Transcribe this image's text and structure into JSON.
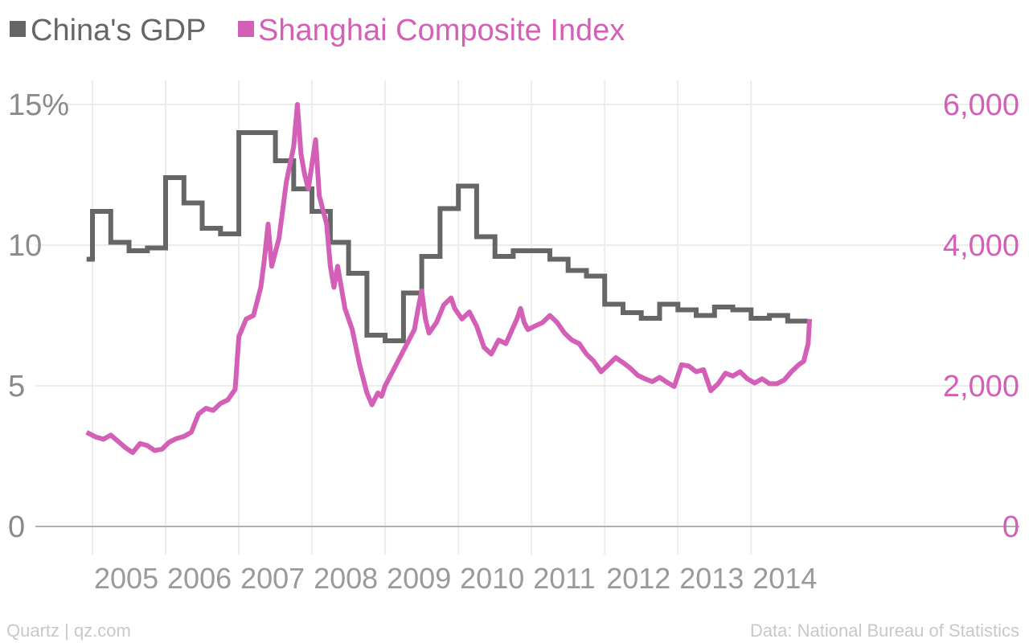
{
  "colors": {
    "gdp": "#666666",
    "index": "#d35fb7",
    "grid": "#ececec",
    "axis": "#b0b0b0",
    "footer": "#c8c8c8"
  },
  "legend": [
    {
      "label": "China's GDP",
      "color": "#666666"
    },
    {
      "label": "Shanghai Composite Index",
      "color": "#d35fb7"
    }
  ],
  "footer": {
    "source_left": "Quartz | qz.com",
    "source_right": "Data: National Bureau of Statistics"
  },
  "chart_data": {
    "type": "line",
    "legend_position": "top-left",
    "grid": true,
    "x_ticks": [
      "2005",
      "2006",
      "2007",
      "2008",
      "2009",
      "2010",
      "2011",
      "2012",
      "2013",
      "2014"
    ],
    "x_range": [
      2004.0,
      2015.04
    ],
    "y_left": {
      "ticks": [
        0,
        5,
        10,
        15
      ],
      "tick_labels": [
        "0",
        "5",
        "10",
        "15%"
      ],
      "range": [
        0,
        15
      ]
    },
    "y_right": {
      "ticks": [
        0,
        2000,
        4000,
        6000
      ],
      "tick_labels": [
        "0",
        "2,000",
        "4,000",
        "6,000"
      ],
      "range": [
        0,
        6000
      ]
    },
    "series": [
      {
        "name": "China's GDP",
        "axis": "left",
        "shape": "step",
        "points": [
          [
            2003.92,
            9.5
          ],
          [
            2004.0,
            9.5
          ],
          [
            2004.0,
            11.2
          ],
          [
            2004.25,
            11.2
          ],
          [
            2004.25,
            10.1
          ],
          [
            2004.5,
            10.1
          ],
          [
            2004.5,
            9.8
          ],
          [
            2004.75,
            9.8
          ],
          [
            2004.75,
            9.9
          ],
          [
            2005.0,
            9.9
          ],
          [
            2005.0,
            12.4
          ],
          [
            2005.25,
            12.4
          ],
          [
            2005.25,
            11.5
          ],
          [
            2005.5,
            11.5
          ],
          [
            2005.5,
            10.6
          ],
          [
            2005.75,
            10.6
          ],
          [
            2005.75,
            10.4
          ],
          [
            2006.0,
            10.4
          ],
          [
            2006.0,
            14.0
          ],
          [
            2006.5,
            14.0
          ],
          [
            2006.5,
            13.0
          ],
          [
            2006.75,
            13.0
          ],
          [
            2006.75,
            12.0
          ],
          [
            2007.0,
            12.0
          ],
          [
            2007.0,
            11.2
          ],
          [
            2007.25,
            11.2
          ],
          [
            2007.25,
            10.1
          ],
          [
            2007.5,
            10.1
          ],
          [
            2007.5,
            9.0
          ],
          [
            2007.75,
            9.0
          ],
          [
            2007.75,
            6.8
          ],
          [
            2008.0,
            6.8
          ],
          [
            2008.0,
            6.6
          ],
          [
            2008.25,
            6.6
          ],
          [
            2008.25,
            8.3
          ],
          [
            2008.5,
            8.3
          ],
          [
            2008.5,
            9.6
          ],
          [
            2008.75,
            9.6
          ],
          [
            2008.75,
            11.3
          ],
          [
            2009.0,
            11.3
          ],
          [
            2009.0,
            12.1
          ],
          [
            2009.25,
            12.1
          ],
          [
            2009.25,
            10.3
          ],
          [
            2009.5,
            10.3
          ],
          [
            2009.5,
            9.6
          ],
          [
            2009.75,
            9.6
          ],
          [
            2009.75,
            9.8
          ],
          [
            2010.25,
            9.8
          ],
          [
            2010.25,
            9.5
          ],
          [
            2010.5,
            9.5
          ],
          [
            2010.5,
            9.1
          ],
          [
            2010.75,
            9.1
          ],
          [
            2010.75,
            8.9
          ],
          [
            2011.0,
            8.9
          ],
          [
            2011.0,
            7.9
          ],
          [
            2011.25,
            7.9
          ],
          [
            2011.25,
            7.6
          ],
          [
            2011.5,
            7.6
          ],
          [
            2011.5,
            7.4
          ],
          [
            2011.75,
            7.4
          ],
          [
            2011.75,
            7.9
          ],
          [
            2012.0,
            7.9
          ],
          [
            2012.0,
            7.7
          ],
          [
            2012.25,
            7.7
          ],
          [
            2012.25,
            7.5
          ],
          [
            2012.5,
            7.5
          ],
          [
            2012.5,
            7.8
          ],
          [
            2012.75,
            7.8
          ],
          [
            2012.75,
            7.7
          ],
          [
            2013.0,
            7.7
          ],
          [
            2013.0,
            7.4
          ],
          [
            2013.25,
            7.4
          ],
          [
            2013.25,
            7.5
          ],
          [
            2013.5,
            7.5
          ],
          [
            2013.5,
            7.3
          ],
          [
            2013.77,
            7.3
          ]
        ]
      },
      {
        "name": "Shanghai Composite Index",
        "axis": "right",
        "shape": "line",
        "points": [
          [
            2003.92,
            1340
          ],
          [
            2004.05,
            1270
          ],
          [
            2004.15,
            1240
          ],
          [
            2004.25,
            1300
          ],
          [
            2004.35,
            1210
          ],
          [
            2004.45,
            1120
          ],
          [
            2004.55,
            1050
          ],
          [
            2004.65,
            1180
          ],
          [
            2004.75,
            1150
          ],
          [
            2004.85,
            1080
          ],
          [
            2004.95,
            1100
          ],
          [
            2005.05,
            1200
          ],
          [
            2005.15,
            1250
          ],
          [
            2005.25,
            1280
          ],
          [
            2005.35,
            1340
          ],
          [
            2005.45,
            1600
          ],
          [
            2005.55,
            1680
          ],
          [
            2005.65,
            1650
          ],
          [
            2005.75,
            1750
          ],
          [
            2005.85,
            1800
          ],
          [
            2005.95,
            1950
          ],
          [
            2006.0,
            2700
          ],
          [
            2006.1,
            2950
          ],
          [
            2006.2,
            3000
          ],
          [
            2006.3,
            3400
          ],
          [
            2006.35,
            3800
          ],
          [
            2006.4,
            4300
          ],
          [
            2006.45,
            3700
          ],
          [
            2006.55,
            4100
          ],
          [
            2006.65,
            4900
          ],
          [
            2006.75,
            5400
          ],
          [
            2006.8,
            6000
          ],
          [
            2006.85,
            5300
          ],
          [
            2006.9,
            5000
          ],
          [
            2006.95,
            4800
          ],
          [
            2007.05,
            5500
          ],
          [
            2007.1,
            4700
          ],
          [
            2007.15,
            4500
          ],
          [
            2007.2,
            4300
          ],
          [
            2007.25,
            3700
          ],
          [
            2007.3,
            3400
          ],
          [
            2007.35,
            3700
          ],
          [
            2007.45,
            3100
          ],
          [
            2007.55,
            2800
          ],
          [
            2007.65,
            2300
          ],
          [
            2007.75,
            1900
          ],
          [
            2007.82,
            1730
          ],
          [
            2007.9,
            1900
          ],
          [
            2007.95,
            1850
          ],
          [
            2008.0,
            2000
          ],
          [
            2008.1,
            2200
          ],
          [
            2008.2,
            2400
          ],
          [
            2008.3,
            2600
          ],
          [
            2008.4,
            2800
          ],
          [
            2008.45,
            3100
          ],
          [
            2008.5,
            3350
          ],
          [
            2008.55,
            2950
          ],
          [
            2008.6,
            2750
          ],
          [
            2008.7,
            2900
          ],
          [
            2008.8,
            3150
          ],
          [
            2008.9,
            3250
          ],
          [
            2008.95,
            3100
          ],
          [
            2009.05,
            2950
          ],
          [
            2009.15,
            3050
          ],
          [
            2009.25,
            2850
          ],
          [
            2009.35,
            2550
          ],
          [
            2009.45,
            2450
          ],
          [
            2009.55,
            2650
          ],
          [
            2009.65,
            2600
          ],
          [
            2009.8,
            2950
          ],
          [
            2009.85,
            3100
          ],
          [
            2009.9,
            2900
          ],
          [
            2009.95,
            2800
          ],
          [
            2010.05,
            2850
          ],
          [
            2010.15,
            2900
          ],
          [
            2010.25,
            3000
          ],
          [
            2010.35,
            2900
          ],
          [
            2010.45,
            2750
          ],
          [
            2010.55,
            2650
          ],
          [
            2010.65,
            2600
          ],
          [
            2010.75,
            2450
          ],
          [
            2010.85,
            2350
          ],
          [
            2010.95,
            2200
          ],
          [
            2011.05,
            2300
          ],
          [
            2011.15,
            2400
          ],
          [
            2011.25,
            2330
          ],
          [
            2011.35,
            2250
          ],
          [
            2011.45,
            2150
          ],
          [
            2011.55,
            2100
          ],
          [
            2011.65,
            2060
          ],
          [
            2011.75,
            2120
          ],
          [
            2011.85,
            2050
          ],
          [
            2011.95,
            1990
          ],
          [
            2012.05,
            2300
          ],
          [
            2012.15,
            2280
          ],
          [
            2012.25,
            2200
          ],
          [
            2012.35,
            2230
          ],
          [
            2012.45,
            1930
          ],
          [
            2012.55,
            2030
          ],
          [
            2012.65,
            2180
          ],
          [
            2012.75,
            2140
          ],
          [
            2012.85,
            2200
          ],
          [
            2012.95,
            2100
          ],
          [
            2013.05,
            2040
          ],
          [
            2013.15,
            2100
          ],
          [
            2013.25,
            2030
          ],
          [
            2013.35,
            2030
          ],
          [
            2013.45,
            2080
          ],
          [
            2013.55,
            2200
          ],
          [
            2013.65,
            2300
          ],
          [
            2013.72,
            2350
          ],
          [
            2013.78,
            2600
          ],
          [
            2013.8,
            2950
          ]
        ]
      }
    ]
  }
}
